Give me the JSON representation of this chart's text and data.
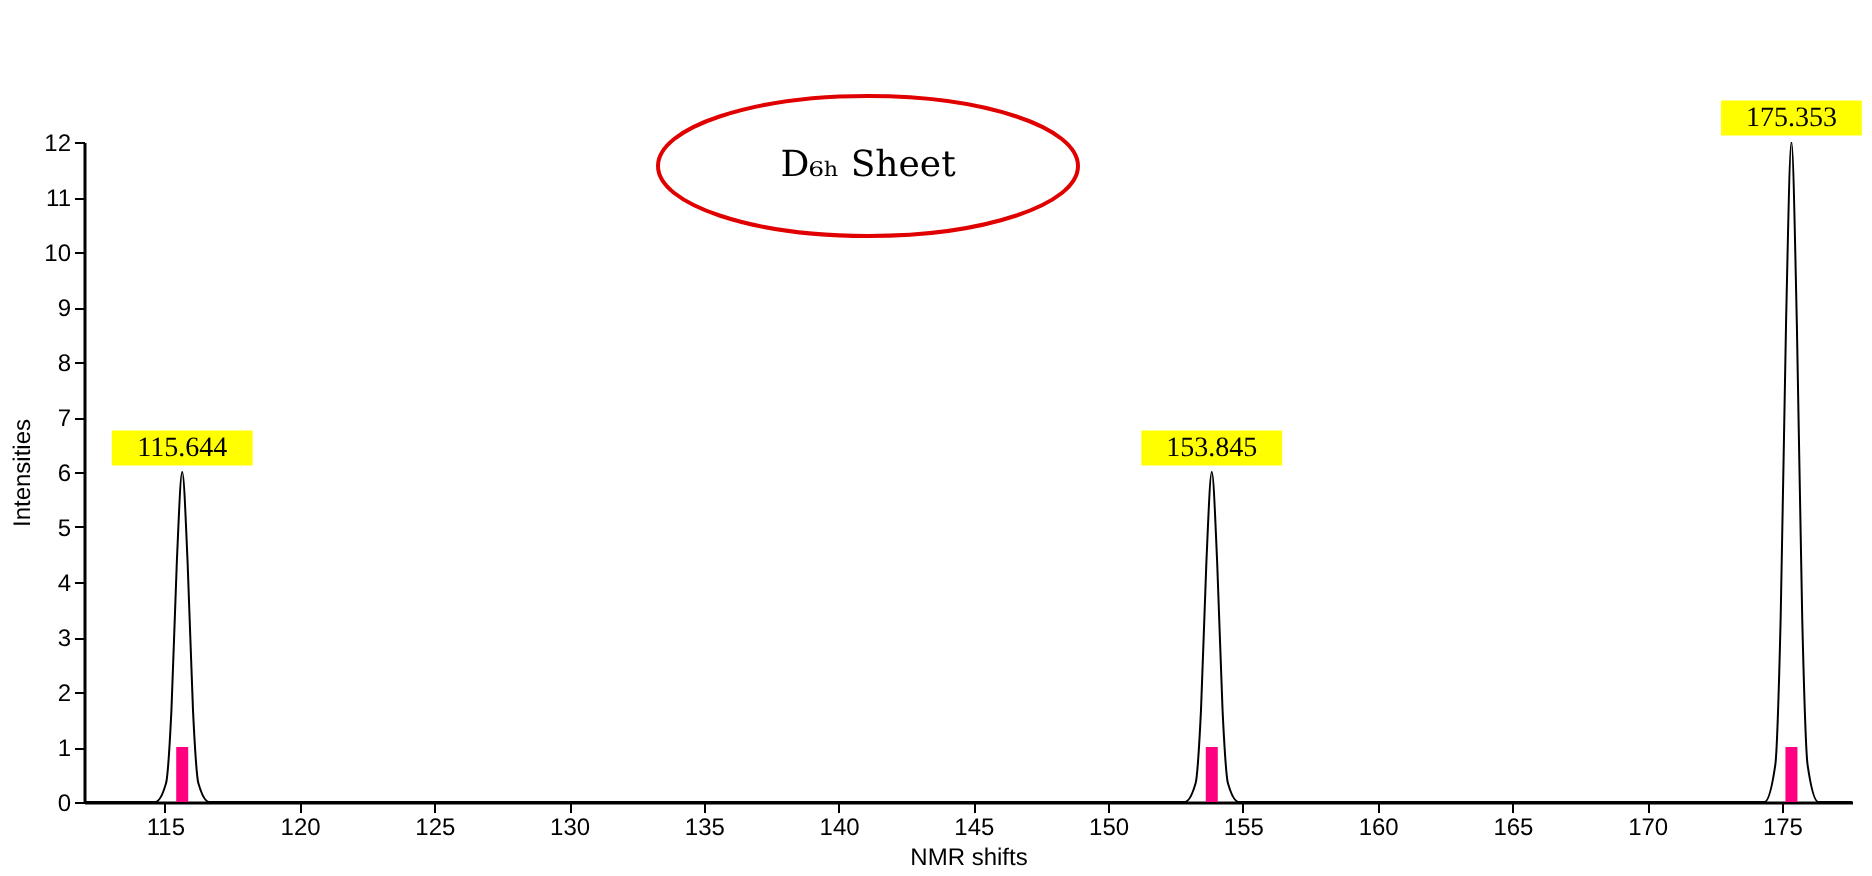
{
  "chart_data": {
    "type": "line",
    "title": "D₆ₕ Sheet",
    "xlabel": "NMR shifts",
    "ylabel": "Intensities",
    "series": [
      {
        "color": "#000000",
        "x": [
          112,
          114.644,
          115.044,
          115.244,
          115.444,
          115.644,
          115.844,
          116.044,
          116.244,
          116.644,
          152.845,
          153.245,
          153.445,
          153.645,
          153.845,
          154.045,
          154.245,
          154.445,
          154.845,
          174.353,
          174.753,
          174.953,
          175.153,
          175.353,
          175.553,
          175.753,
          175.953,
          176.353,
          177.6
        ],
        "values": [
          0,
          0,
          0.34,
          1.67,
          4.36,
          6,
          4.36,
          1.67,
          0.34,
          0,
          0,
          0.34,
          1.67,
          4.36,
          6,
          4.36,
          1.67,
          0.34,
          0,
          0,
          0.67,
          3.34,
          8.71,
          12,
          8.71,
          3.34,
          0.67,
          0,
          0
        ]
      },
      {
        "type": "bar",
        "color": "#ff0080",
        "x": [
          115.644,
          153.845,
          175.353
        ],
        "values": [
          1,
          1,
          1
        ]
      }
    ],
    "annotations": [
      {
        "text": "115.644",
        "x": 115.644,
        "y": 6
      },
      {
        "text": "153.845",
        "x": 153.845,
        "y": 6
      },
      {
        "text": "175.353",
        "x": 175.353,
        "y": 12
      }
    ],
    "xlim": [
      112,
      177.6
    ],
    "xticks": [
      115,
      120,
      125,
      130,
      135,
      140,
      145,
      150,
      155,
      160,
      165,
      170,
      175
    ],
    "ylim": [
      0,
      12
    ],
    "yticks": [
      0,
      1,
      2,
      3,
      4,
      5,
      6,
      7,
      8,
      9,
      10,
      11,
      12
    ],
    "grid": false
  }
}
